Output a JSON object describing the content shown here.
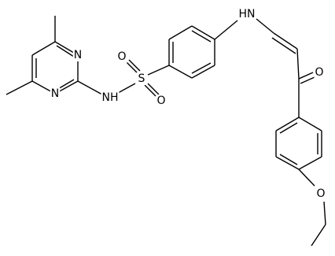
{
  "atoms": {
    "n1": "N",
    "n3": "N",
    "nh": "NH",
    "s": "S",
    "o1": "O",
    "o2": "O",
    "hn": "HN",
    "o_keto": "O",
    "o_ether": "O"
  }
}
